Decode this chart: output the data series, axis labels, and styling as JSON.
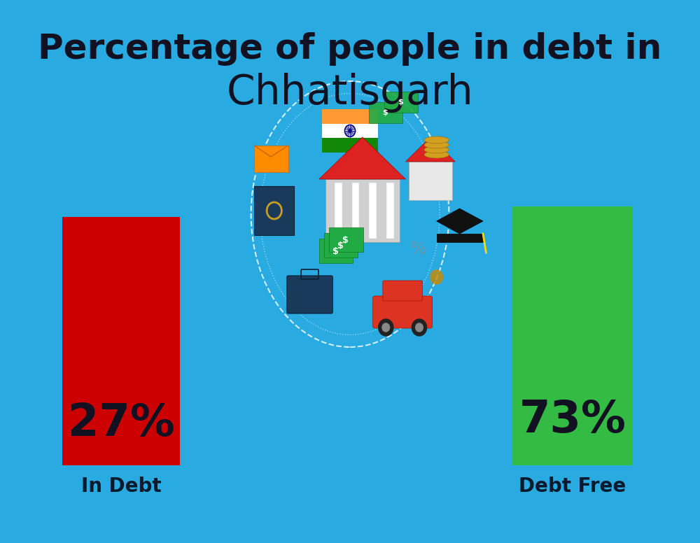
{
  "title_line1": "Percentage of people in debt in",
  "title_line2": "Chhatisgarh",
  "title_fontsize": 36,
  "subtitle_fontsize": 42,
  "background_color": "#29ABE2",
  "bar_left_value": "27%",
  "bar_right_value": "73%",
  "bar_left_label": "In Debt",
  "bar_right_label": "Debt Free",
  "bar_left_color": "#CC0000",
  "bar_right_color": "#33BB44",
  "bar_value_fontsize": 46,
  "bar_label_fontsize": 20,
  "text_color": "#111122",
  "label_color": "#0a1a2e",
  "flag_saffron": "#FF9933",
  "flag_white": "#FFFFFF",
  "flag_green": "#138808",
  "flag_chakra": "#000080"
}
